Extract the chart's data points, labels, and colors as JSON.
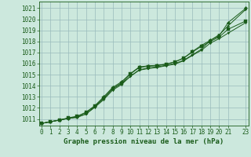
{
  "title": "Graphe pression niveau de la mer (hPa)",
  "background_color": "#cce8dd",
  "grid_color": "#99bbbb",
  "line_color": "#1a5c1a",
  "xlim": [
    -0.3,
    23.3
  ],
  "ylim": [
    1010.4,
    1021.6
  ],
  "xticks": [
    0,
    1,
    2,
    3,
    4,
    5,
    6,
    7,
    8,
    9,
    10,
    11,
    12,
    13,
    14,
    15,
    16,
    17,
    18,
    19,
    20,
    21,
    23
  ],
  "yticks": [
    1011,
    1012,
    1013,
    1014,
    1015,
    1016,
    1017,
    1018,
    1019,
    1020,
    1021
  ],
  "series": [
    [
      1010.6,
      1010.75,
      1010.9,
      1011.05,
      1011.15,
      1011.45,
      1012.1,
      1012.85,
      1013.7,
      1014.2,
      1014.85,
      1015.45,
      1015.6,
      1015.7,
      1015.85,
      1016.0,
      1016.3,
      1016.8,
      1017.3,
      1018.1,
      1018.6,
      1019.4,
      1020.9
    ],
    [
      1010.6,
      1010.75,
      1010.9,
      1011.05,
      1011.2,
      1011.6,
      1012.2,
      1013.0,
      1013.85,
      1014.35,
      1015.1,
      1015.7,
      1015.8,
      1015.85,
      1015.95,
      1016.15,
      1016.5,
      1017.1,
      1017.65,
      1018.1,
      1018.5,
      1019.7,
      1021.0
    ],
    [
      1010.6,
      1010.75,
      1010.9,
      1011.1,
      1011.25,
      1011.6,
      1012.15,
      1012.9,
      1013.75,
      1014.25,
      1015.05,
      1015.65,
      1015.75,
      1015.8,
      1015.95,
      1016.15,
      1016.5,
      1017.05,
      1017.55,
      1018.0,
      1018.4,
      1019.1,
      1019.85
    ],
    [
      1010.6,
      1010.75,
      1010.9,
      1011.05,
      1011.15,
      1011.45,
      1012.05,
      1012.75,
      1013.6,
      1014.1,
      1014.85,
      1015.4,
      1015.55,
      1015.65,
      1015.8,
      1015.95,
      1016.25,
      1016.75,
      1017.2,
      1017.85,
      1018.25,
      1018.75,
      1019.7
    ]
  ],
  "hours": [
    0,
    1,
    2,
    3,
    4,
    5,
    6,
    7,
    8,
    9,
    10,
    11,
    12,
    13,
    14,
    15,
    16,
    17,
    18,
    19,
    20,
    21,
    23
  ],
  "tick_fontsize": 5.5,
  "xlabel_fontsize": 6.5
}
